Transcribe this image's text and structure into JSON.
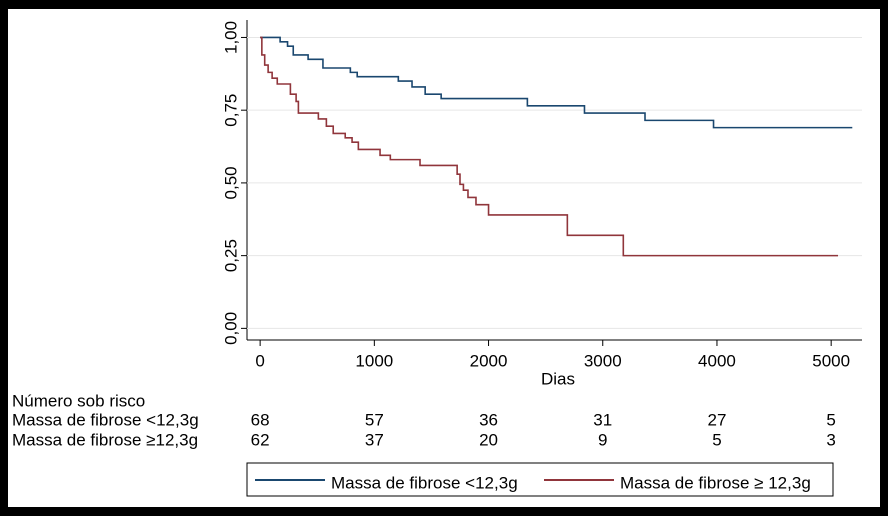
{
  "chart_data": {
    "type": "step",
    "xlabel": "Dias",
    "xlim": [
      -115,
      5270
    ],
    "xticks": [
      0,
      1000,
      2000,
      3000,
      4000,
      5000
    ],
    "ylim": [
      -0.04,
      1.06
    ],
    "yticks": [
      {
        "value": 0,
        "label": "0,00"
      },
      {
        "value": 0.25,
        "label": "0,25"
      },
      {
        "value": 0.5,
        "label": "0,50"
      },
      {
        "value": 0.75,
        "label": "0,75"
      },
      {
        "value": 1,
        "label": "1,00"
      }
    ],
    "grid": true,
    "series": [
      {
        "name": "Massa de fibrose <12,3g",
        "color": "#1a476f",
        "x": [
          0,
          175,
          175,
          240,
          240,
          290,
          290,
          420,
          420,
          550,
          550,
          790,
          790,
          850,
          850,
          1210,
          1210,
          1330,
          1330,
          1445,
          1445,
          1585,
          1585,
          2340,
          2340,
          2840,
          2840,
          3370,
          3370,
          3970,
          3970,
          5185
        ],
        "values": [
          1,
          1,
          0.985,
          0.985,
          0.97,
          0.97,
          0.94,
          0.94,
          0.925,
          0.925,
          0.895,
          0.895,
          0.88,
          0.88,
          0.865,
          0.865,
          0.85,
          0.85,
          0.83,
          0.83,
          0.805,
          0.805,
          0.79,
          0.79,
          0.765,
          0.765,
          0.74,
          0.74,
          0.715,
          0.715,
          0.69,
          0.69
        ]
      },
      {
        "name": "Massa de fibrose ≥ 12,3g",
        "color": "#90353b",
        "x": [
          0,
          15,
          15,
          40,
          40,
          70,
          70,
          105,
          105,
          150,
          150,
          265,
          265,
          315,
          315,
          335,
          335,
          510,
          510,
          580,
          580,
          640,
          640,
          745,
          745,
          805,
          805,
          860,
          860,
          1050,
          1050,
          1140,
          1140,
          1400,
          1400,
          1725,
          1725,
          1750,
          1750,
          1780,
          1780,
          1820,
          1820,
          1890,
          1890,
          2000,
          2000,
          2690,
          2690,
          3180,
          3180,
          5060
        ],
        "values": [
          1,
          1,
          0.94,
          0.94,
          0.905,
          0.905,
          0.88,
          0.88,
          0.86,
          0.86,
          0.84,
          0.84,
          0.805,
          0.805,
          0.78,
          0.78,
          0.74,
          0.74,
          0.72,
          0.72,
          0.695,
          0.695,
          0.67,
          0.67,
          0.655,
          0.655,
          0.64,
          0.64,
          0.615,
          0.615,
          0.595,
          0.595,
          0.58,
          0.58,
          0.56,
          0.56,
          0.53,
          0.53,
          0.495,
          0.495,
          0.475,
          0.475,
          0.45,
          0.45,
          0.425,
          0.425,
          0.39,
          0.39,
          0.32,
          0.32,
          0.25,
          0.25
        ]
      }
    ],
    "risk_table": {
      "title": "Número sob risco",
      "rows": [
        {
          "label": "Massa de fibrose <12,3g",
          "values": [
            68,
            57,
            36,
            31,
            27,
            5
          ]
        },
        {
          "label": "Massa de fibrose ≥12,3g",
          "values": [
            62,
            37,
            20,
            9,
            5,
            3
          ]
        }
      ]
    }
  }
}
